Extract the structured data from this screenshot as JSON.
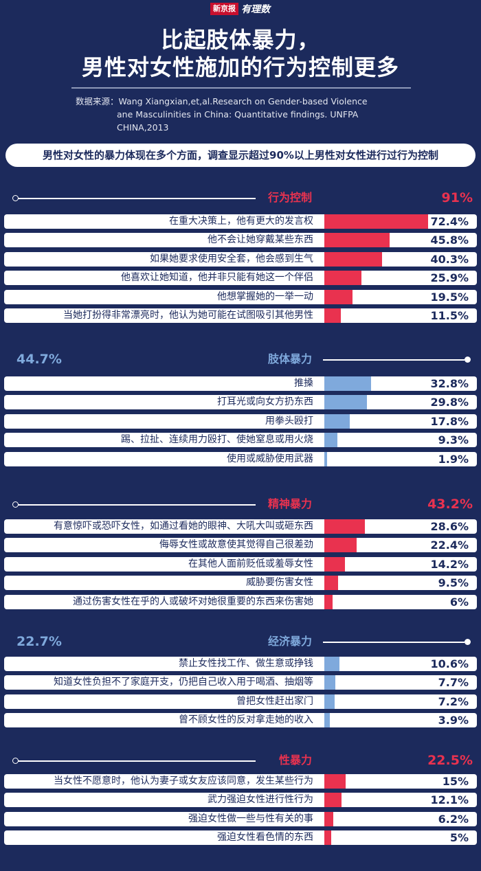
{
  "logo": {
    "brand": "新京报",
    "sub": "有理数"
  },
  "title_line1": "比起肢体暴力，",
  "title_line2": "男性对女性施加的行为控制更多",
  "source_line1": "数据来源：Wang Xiangxian,et,al.Research on Gender-based Violence",
  "source_line2": "ane Masculinities in China: Quantitative findings. UNFPA CHINA,2013",
  "banner": "男性对女性的暴力体现在多个方面，调查显示超过90%以上男性对女性进行过行为控制",
  "colors": {
    "background": "#1c2a5c",
    "red": "#e9324f",
    "blue": "#7fa9dc",
    "row_bg": "#ffffff"
  },
  "chart_data": {
    "type": "bar",
    "orientation": "horizontal",
    "unit": "%",
    "xlim": [
      0,
      100
    ],
    "groups": [
      {
        "name": "行为控制",
        "total": "91%",
        "color": "red",
        "items": [
          {
            "label": "在重大决策上，他有更大的发言权",
            "value": 72.4,
            "display": "72.4%"
          },
          {
            "label": "他不会让她穿戴某些东西",
            "value": 45.8,
            "display": "45.8%"
          },
          {
            "label": "如果她要求使用安全套，他会感到生气",
            "value": 40.3,
            "display": "40.3%"
          },
          {
            "label": "他喜欢让她知道，他并非只能有她这一个伴侣",
            "value": 25.9,
            "display": "25.9%"
          },
          {
            "label": "他想掌握她的一举一动",
            "value": 19.5,
            "display": "19.5%"
          },
          {
            "label": "当她打扮得非常漂亮时，他认为她可能在试图吸引其他男性",
            "value": 11.5,
            "display": "11.5%"
          }
        ]
      },
      {
        "name": "肢体暴力",
        "total": "44.7%",
        "color": "blue",
        "items": [
          {
            "label": "推搡",
            "value": 32.8,
            "display": "32.8%"
          },
          {
            "label": "打耳光或向女方扔东西",
            "value": 29.8,
            "display": "29.8%"
          },
          {
            "label": "用拳头殴打",
            "value": 17.8,
            "display": "17.8%"
          },
          {
            "label": "踢、拉扯、连续用力殴打、使她窒息或用火烧",
            "value": 9.3,
            "display": "9.3%"
          },
          {
            "label": "使用或威胁使用武器",
            "value": 1.9,
            "display": "1.9%"
          }
        ]
      },
      {
        "name": "精神暴力",
        "total": "43.2%",
        "color": "red",
        "items": [
          {
            "label": "有意惊吓或恐吓女性，如通过看她的眼神、大吼大叫或砸东西",
            "value": 28.6,
            "display": "28.6%"
          },
          {
            "label": "侮辱女性或故意使其觉得自己很差劲",
            "value": 22.4,
            "display": "22.4%"
          },
          {
            "label": "在其他人面前贬低或羞辱女性",
            "value": 14.2,
            "display": "14.2%"
          },
          {
            "label": "威胁要伤害女性",
            "value": 9.5,
            "display": "9.5%"
          },
          {
            "label": "通过伤害女性在乎的人或破坏对她很重要的东西来伤害她",
            "value": 6,
            "display": "6%"
          }
        ]
      },
      {
        "name": "经济暴力",
        "total": "22.7%",
        "color": "blue",
        "items": [
          {
            "label": "禁止女性找工作、做生意或挣钱",
            "value": 10.6,
            "display": "10.6%"
          },
          {
            "label": "知道女性负担不了家庭开支，仍把自己收入用于喝酒、抽烟等",
            "value": 7.7,
            "display": "7.7%"
          },
          {
            "label": "曾把女性赶出家门",
            "value": 7.2,
            "display": "7.2%"
          },
          {
            "label": "曾不顾女性的反对拿走她的收入",
            "value": 3.9,
            "display": "3.9%"
          }
        ]
      },
      {
        "name": "性暴力",
        "total": "22.5%",
        "color": "red",
        "items": [
          {
            "label": "当女性不愿意时，他认为妻子或女友应该同意，发生某些行为",
            "value": 15,
            "display": "15%"
          },
          {
            "label": "武力强迫女性进行性行为",
            "value": 12.1,
            "display": "12.1%"
          },
          {
            "label": "强迫女性做一些与性有关的事",
            "value": 6.2,
            "display": "6.2%"
          },
          {
            "label": "强迫女性看色情的东西",
            "value": 5,
            "display": "5%"
          }
        ]
      }
    ]
  }
}
